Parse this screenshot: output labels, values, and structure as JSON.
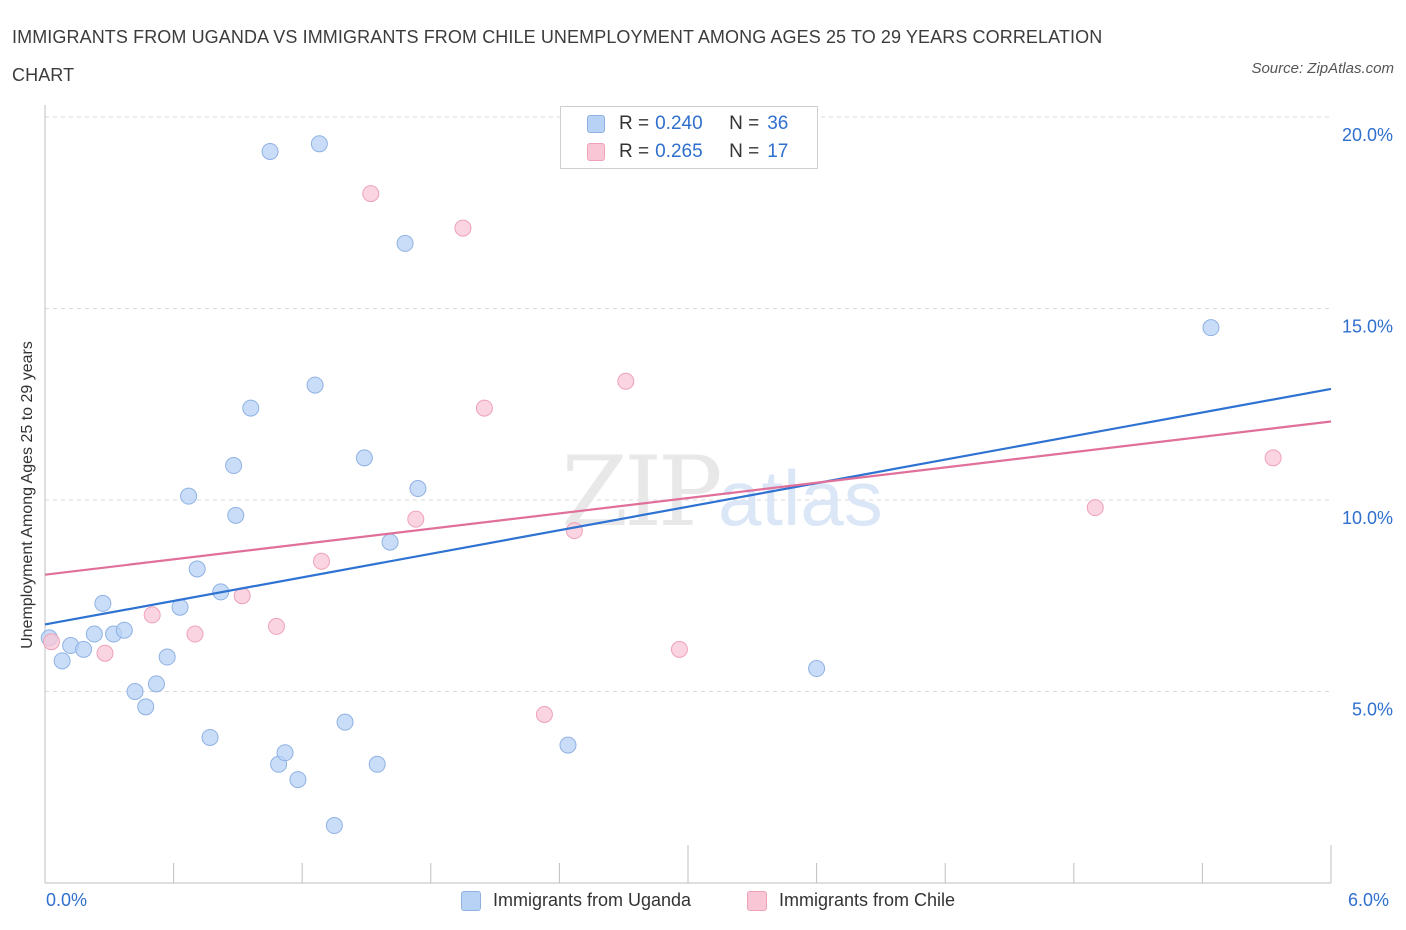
{
  "title": "IMMIGRANTS FROM UGANDA VS IMMIGRANTS FROM CHILE UNEMPLOYMENT AMONG AGES 25 TO 29 YEARS CORRELATION CHART",
  "source": "Source: ZipAtlas.com",
  "watermark": {
    "zip": "ZIP",
    "atlas": "atlas"
  },
  "colors": {
    "uganda_fill": "#b8d2f5",
    "uganda_stroke": "#8fb2e3",
    "uganda_line": "#2e72d2",
    "chile_fill": "#f8c6d5",
    "chile_stroke": "#eea2b8",
    "chile_line": "#e0709a",
    "axis_label": "#2f6fce",
    "grid": "#d9d9d9"
  },
  "legend": {
    "rows": [
      {
        "r_label": "R = ",
        "r_value": "0.240",
        "n_label": "N = ",
        "n_value": "36",
        "series": "uganda"
      },
      {
        "r_label": "R = ",
        "r_value": "0.265",
        "n_label": "N = ",
        "n_value": "17",
        "series": "chile"
      }
    ]
  },
  "bottom_legend": {
    "uganda": "Immigrants from Uganda",
    "chile": "Immigrants from Chile"
  },
  "chart_data": {
    "type": "scatter",
    "title": "IMMIGRANTS FROM UGANDA VS IMMIGRANTS FROM CHILE UNEMPLOYMENT AMONG AGES 25 TO 29 YEARS CORRELATION CHART",
    "xlabel": "",
    "ylabel": "Unemployment Among Ages 25 to 29 years",
    "xlim": [
      0,
      6
    ],
    "ylim": [
      0,
      20
    ],
    "x_tick_labels": [
      "0.0%",
      "6.0%"
    ],
    "y_ticks": [
      5,
      10,
      15,
      20
    ],
    "y_tick_labels": [
      "5.0%",
      "10.0%",
      "15.0%",
      "20.0%"
    ],
    "grid": true,
    "series": [
      {
        "name": "Immigrants from Uganda",
        "points": [
          [
            0.02,
            6.4
          ],
          [
            0.08,
            5.8
          ],
          [
            0.12,
            6.2
          ],
          [
            0.18,
            6.1
          ],
          [
            0.23,
            6.5
          ],
          [
            0.27,
            7.3
          ],
          [
            0.32,
            6.5
          ],
          [
            0.37,
            6.6
          ],
          [
            0.42,
            5.0
          ],
          [
            0.47,
            4.6
          ],
          [
            0.52,
            5.2
          ],
          [
            0.57,
            5.9
          ],
          [
            0.63,
            7.2
          ],
          [
            0.67,
            10.1
          ],
          [
            0.71,
            8.2
          ],
          [
            0.77,
            3.8
          ],
          [
            0.82,
            7.6
          ],
          [
            0.88,
            10.9
          ],
          [
            0.89,
            9.6
          ],
          [
            0.96,
            12.4
          ],
          [
            1.05,
            19.1
          ],
          [
            1.09,
            3.1
          ],
          [
            1.12,
            3.4
          ],
          [
            1.18,
            2.7
          ],
          [
            1.26,
            13.0
          ],
          [
            1.28,
            19.3
          ],
          [
            1.35,
            1.5
          ],
          [
            1.4,
            4.2
          ],
          [
            1.49,
            11.1
          ],
          [
            1.55,
            3.1
          ],
          [
            1.61,
            8.9
          ],
          [
            1.68,
            16.7
          ],
          [
            1.74,
            10.3
          ],
          [
            2.44,
            3.6
          ],
          [
            3.6,
            5.6
          ],
          [
            5.44,
            14.5
          ]
        ]
      },
      {
        "name": "Immigrants from Chile",
        "points": [
          [
            0.03,
            6.3
          ],
          [
            0.28,
            6.0
          ],
          [
            0.5,
            7.0
          ],
          [
            0.7,
            6.5
          ],
          [
            0.92,
            7.5
          ],
          [
            1.08,
            6.7
          ],
          [
            1.29,
            8.4
          ],
          [
            1.52,
            18.0
          ],
          [
            1.73,
            9.5
          ],
          [
            1.95,
            17.1
          ],
          [
            2.05,
            12.4
          ],
          [
            2.33,
            4.4
          ],
          [
            2.47,
            9.2
          ],
          [
            2.71,
            13.1
          ],
          [
            2.96,
            6.1
          ],
          [
            4.9,
            9.8
          ],
          [
            5.73,
            11.1
          ]
        ]
      }
    ],
    "trendlines": [
      {
        "series": "Immigrants from Uganda",
        "x": [
          0,
          6
        ],
        "y": [
          6.75,
          12.9
        ]
      },
      {
        "series": "Immigrants from Chile",
        "x": [
          0,
          6
        ],
        "y": [
          8.05,
          12.05
        ]
      }
    ]
  }
}
